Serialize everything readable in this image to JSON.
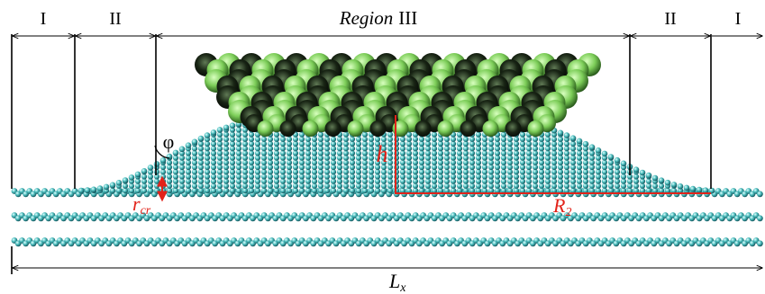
{
  "regions": {
    "left_outer": "I",
    "left_mid": "II",
    "center_word": "Region",
    "center_numeral": "III",
    "right_mid": "II",
    "right_outer": "I"
  },
  "annotations": {
    "angle": "φ",
    "height": "h",
    "radius_base": "r",
    "radius_sub": "cr",
    "radius2_base": "R",
    "radius2_sub": "2",
    "length_base": "L",
    "length_sub": "x"
  },
  "colors": {
    "substrate_atom": "#3aa8a8",
    "substrate_atom_light": "#bff0ee",
    "tip_atom": "#86d463",
    "tip_atom_dark": "#0d170a",
    "annotation": "#e2231a",
    "line": "#000000"
  }
}
